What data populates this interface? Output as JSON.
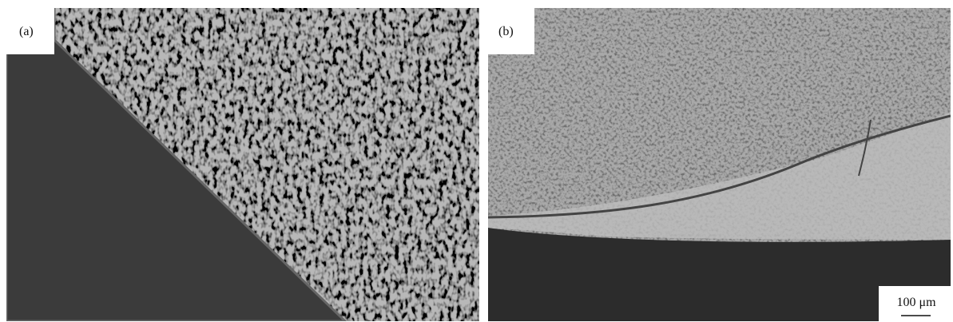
{
  "panels": [
    {
      "label": "(a)"
    },
    {
      "label": "(b)"
    }
  ],
  "scale_bar": {
    "label": "100 μm"
  }
}
